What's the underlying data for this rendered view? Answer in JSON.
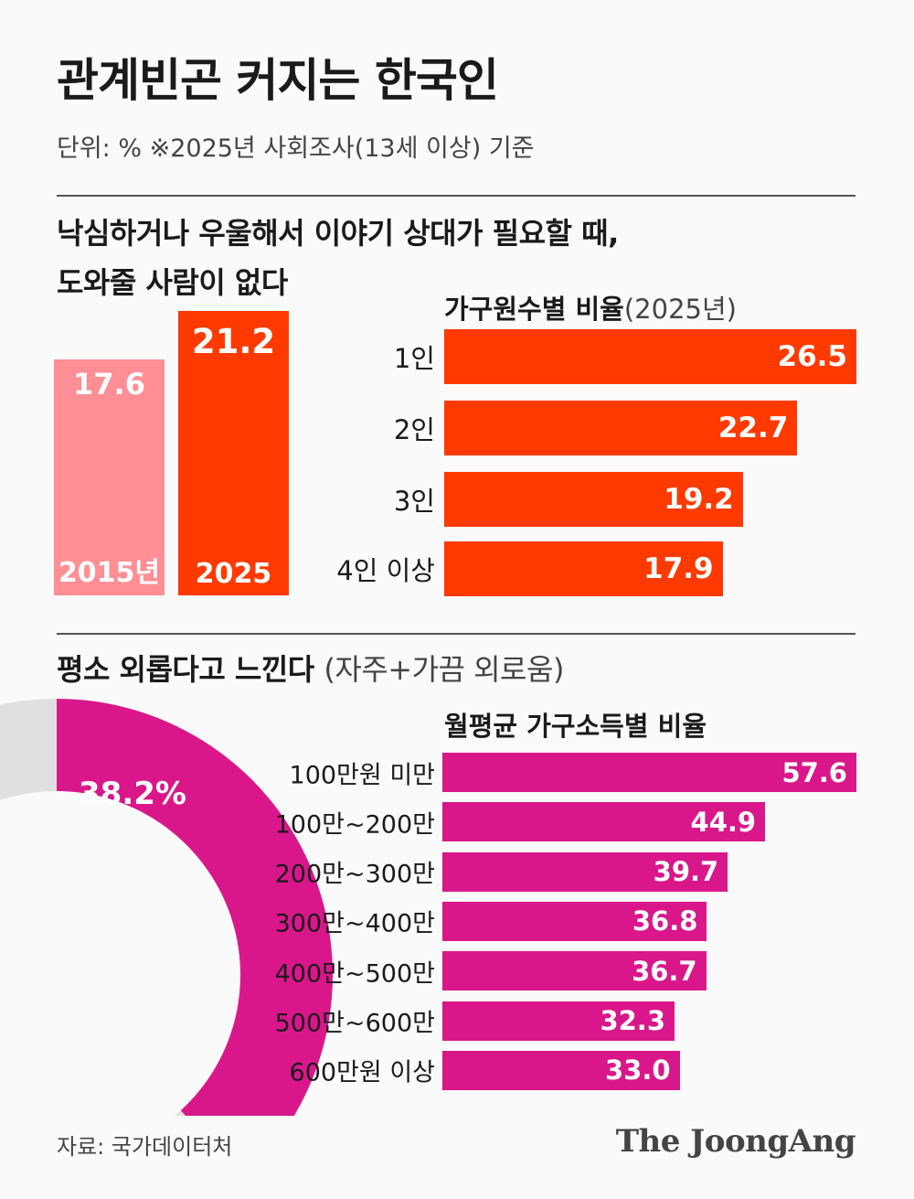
{
  "header": {
    "title": "관계빈곤 커지는 한국인",
    "subtitle": "단위: %  ※2025년 사회조사(13세 이상) 기준"
  },
  "colors": {
    "primary": "#ff3a00",
    "primary_light": "#ff8f95",
    "magenta": "#d9178a",
    "donut_rest": "#e0e0e0"
  },
  "section1": {
    "heading_line1": "낙심하거나 우울해서 이야기 상대가 필요할 때,",
    "heading_line2": "도와줄 사람이 없다",
    "subhead_bold": "가구원수별 비율",
    "subhead_thin": "(2025년)"
  },
  "section2": {
    "heading_bold": "평소 외롭다고 느낀다",
    "heading_thin": "(자주+가끔 외로움)",
    "subhead": "월평균 가구소득별 비율",
    "donut_label": "38.2%"
  },
  "chart_data": [
    {
      "type": "bar",
      "title": "낙심하거나 우울해서 이야기 상대가 필요할 때, 도와줄 사람이 없다",
      "categories": [
        "2015년",
        "2025"
      ],
      "values": [
        17.6,
        21.2
      ],
      "value_labels": [
        "17.6",
        "21.2"
      ],
      "ylim": [
        0,
        24
      ]
    },
    {
      "type": "bar",
      "orientation": "horizontal",
      "title": "가구원수별 비율(2025년)",
      "categories": [
        "1인",
        "2인",
        "3인",
        "4인 이상"
      ],
      "values": [
        26.5,
        22.7,
        19.2,
        17.9
      ],
      "value_labels": [
        "26.5",
        "22.7",
        "19.2",
        "17.9"
      ],
      "xlim": [
        0,
        26.5
      ]
    },
    {
      "type": "pie",
      "title": "평소 외롭다고 느낀다(자주+가끔 외로움)",
      "values": [
        38.2,
        61.8
      ],
      "label": "38.2%"
    },
    {
      "type": "bar",
      "orientation": "horizontal",
      "title": "월평균 가구소득별 비율",
      "categories": [
        "100만원 미만",
        "100만~200만",
        "200만~300만",
        "300만~400만",
        "400만~500만",
        "500만~600만",
        "600만원 이상"
      ],
      "values": [
        57.6,
        44.9,
        39.7,
        36.8,
        36.7,
        32.3,
        33.0
      ],
      "value_labels": [
        "57.6",
        "44.9",
        "39.7",
        "36.8",
        "36.7",
        "32.3",
        "33.0"
      ],
      "xlim": [
        0,
        57.6
      ]
    }
  ],
  "footer": {
    "source": "자료: 국가데이터처",
    "logo": "The JoongAng"
  }
}
